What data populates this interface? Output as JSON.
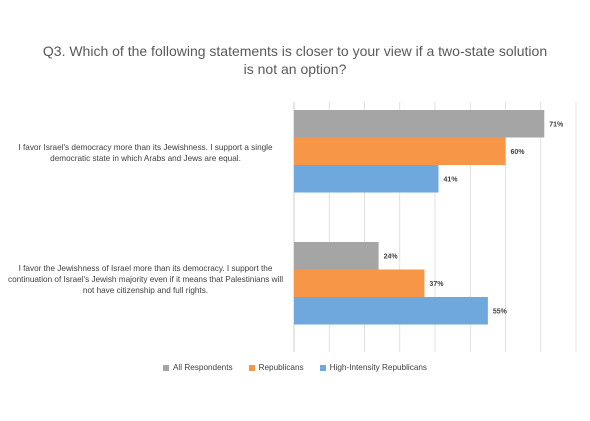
{
  "chart_data": {
    "type": "bar",
    "orientation": "horizontal",
    "title": "Q3. Which of the following statements is closer to your view if a two-state solution is not an option?",
    "xlabel": "",
    "ylabel": "",
    "xlim": [
      0,
      80
    ],
    "grid": true,
    "legend_position": "bottom",
    "categories": [
      "I favor Israel's democracy more than its Jewishness. I support a single democratic state in which Arabs and Jews are equal.",
      "I favor the Jewishness of Israel more than its democracy. I support the continuation of Israel's Jewish majority even if it means that Palestinians will not have citizenship and full rights."
    ],
    "series": [
      {
        "name": "All Respondents",
        "color": "#a5a5a5",
        "values": [
          71,
          24
        ],
        "labels": [
          "71%",
          "24%"
        ]
      },
      {
        "name": "Republicans",
        "color": "#f79646",
        "values": [
          60,
          37
        ],
        "labels": [
          "60%",
          "37%"
        ]
      },
      {
        "name": "High-Intensity Republicans",
        "color": "#6fa8dc",
        "values": [
          41,
          55
        ],
        "labels": [
          "41%",
          "55%"
        ]
      }
    ]
  }
}
